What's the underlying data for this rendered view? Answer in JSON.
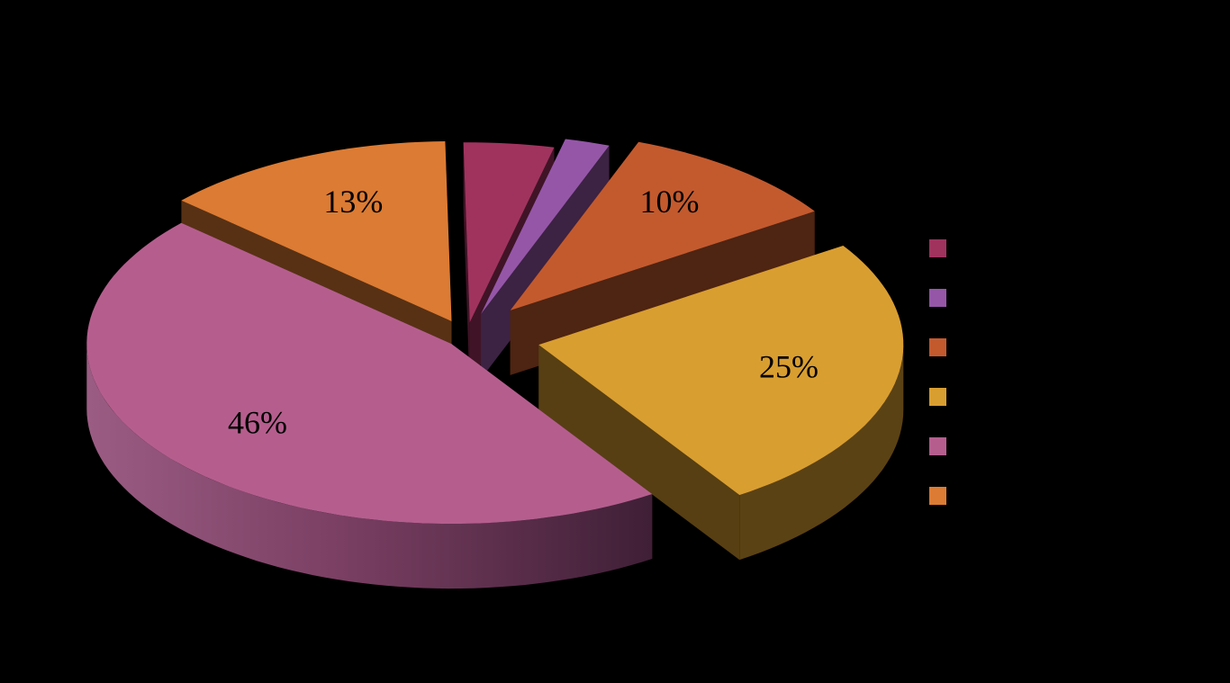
{
  "chart_data": {
    "type": "pie",
    "style": "3d-exploded",
    "legend_position": "right",
    "background": "#000000",
    "categories": [
      "",
      "",
      "",
      "",
      "",
      ""
    ],
    "values": [
      4,
      2,
      10,
      25,
      46,
      13
    ],
    "labels": [
      "",
      "",
      "10%",
      "25%",
      "46%",
      "13%"
    ],
    "colors": [
      "#A0335E",
      "#9556A8",
      "#C35A2E",
      "#D99E30",
      "#B55E8E",
      "#DC7B33"
    ]
  }
}
